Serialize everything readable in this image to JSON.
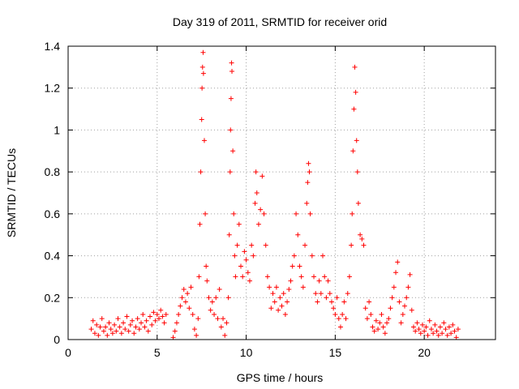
{
  "chart_data": {
    "type": "scatter",
    "title": "Day 319 of 2011, SRMTID for receiver orid",
    "xlabel": "GPS time / hours",
    "ylabel": "SRMTID / TECUs",
    "xlim": [
      0,
      24
    ],
    "ylim": [
      0,
      1.4
    ],
    "xticks": [
      0,
      5,
      10,
      15,
      20
    ],
    "xtick_labels": [
      "0",
      "5",
      "10",
      "15",
      "20"
    ],
    "yticks": [
      0,
      0.2,
      0.4,
      0.6,
      0.8,
      1.0,
      1.2,
      1.4
    ],
    "ytick_labels": [
      "0",
      "0.2",
      "0.4",
      "0.6",
      "0.8",
      "1",
      "1.2",
      "1.4"
    ],
    "grid": true,
    "marker": "+",
    "color": "#ff0000",
    "series": [
      {
        "name": "SRMTID",
        "points": [
          [
            1.3,
            0.05
          ],
          [
            1.4,
            0.09
          ],
          [
            1.5,
            0.03
          ],
          [
            1.6,
            0.07
          ],
          [
            1.7,
            0.02
          ],
          [
            1.8,
            0.06
          ],
          [
            1.9,
            0.1
          ],
          [
            2.0,
            0.04
          ],
          [
            2.1,
            0.06
          ],
          [
            2.2,
            0.02
          ],
          [
            2.3,
            0.08
          ],
          [
            2.4,
            0.05
          ],
          [
            2.5,
            0.03
          ],
          [
            2.6,
            0.07
          ],
          [
            2.7,
            0.04
          ],
          [
            2.8,
            0.1
          ],
          [
            2.9,
            0.06
          ],
          [
            3.0,
            0.03
          ],
          [
            3.1,
            0.08
          ],
          [
            3.2,
            0.05
          ],
          [
            3.3,
            0.11
          ],
          [
            3.4,
            0.04
          ],
          [
            3.5,
            0.07
          ],
          [
            3.6,
            0.09
          ],
          [
            3.7,
            0.03
          ],
          [
            3.8,
            0.06
          ],
          [
            3.9,
            0.1
          ],
          [
            4.0,
            0.05
          ],
          [
            4.1,
            0.08
          ],
          [
            4.2,
            0.12
          ],
          [
            4.3,
            0.06
          ],
          [
            4.4,
            0.09
          ],
          [
            4.5,
            0.04
          ],
          [
            4.6,
            0.11
          ],
          [
            4.7,
            0.07
          ],
          [
            4.8,
            0.13
          ],
          [
            4.9,
            0.09
          ],
          [
            5.0,
            0.12
          ],
          [
            5.1,
            0.1
          ],
          [
            5.2,
            0.14
          ],
          [
            5.3,
            0.11
          ],
          [
            5.4,
            0.08
          ],
          [
            5.5,
            0.12
          ],
          [
            5.9,
            0.01
          ],
          [
            6.0,
            0.04
          ],
          [
            6.1,
            0.08
          ],
          [
            6.2,
            0.12
          ],
          [
            6.3,
            0.16
          ],
          [
            6.4,
            0.2
          ],
          [
            6.5,
            0.24
          ],
          [
            6.6,
            0.18
          ],
          [
            6.7,
            0.22
          ],
          [
            6.8,
            0.15
          ],
          [
            6.9,
            0.25
          ],
          [
            7.0,
            0.12
          ],
          [
            7.1,
            0.05
          ],
          [
            7.2,
            0.02
          ],
          [
            7.3,
            0.1
          ],
          [
            7.35,
            0.3
          ],
          [
            7.4,
            0.55
          ],
          [
            7.45,
            0.8
          ],
          [
            7.5,
            1.05
          ],
          [
            7.52,
            1.2
          ],
          [
            7.55,
            1.3
          ],
          [
            7.58,
            1.37
          ],
          [
            7.6,
            1.27
          ],
          [
            7.65,
            0.95
          ],
          [
            7.7,
            0.6
          ],
          [
            7.75,
            0.35
          ],
          [
            7.8,
            0.28
          ],
          [
            7.9,
            0.2
          ],
          [
            8.0,
            0.14
          ],
          [
            8.1,
            0.18
          ],
          [
            8.2,
            0.12
          ],
          [
            8.3,
            0.2
          ],
          [
            8.4,
            0.1
          ],
          [
            8.5,
            0.24
          ],
          [
            8.6,
            0.06
          ],
          [
            8.7,
            0.1
          ],
          [
            8.8,
            0.02
          ],
          [
            8.9,
            0.08
          ],
          [
            9.0,
            0.2
          ],
          [
            9.05,
            0.5
          ],
          [
            9.1,
            0.8
          ],
          [
            9.12,
            1.0
          ],
          [
            9.15,
            1.15
          ],
          [
            9.18,
            1.32
          ],
          [
            9.2,
            1.28
          ],
          [
            9.25,
            0.9
          ],
          [
            9.3,
            0.6
          ],
          [
            9.35,
            0.4
          ],
          [
            9.4,
            0.3
          ],
          [
            9.5,
            0.45
          ],
          [
            9.6,
            0.55
          ],
          [
            9.7,
            0.35
          ],
          [
            9.8,
            0.3
          ],
          [
            9.9,
            0.42
          ],
          [
            10.0,
            0.38
          ],
          [
            10.1,
            0.32
          ],
          [
            10.2,
            0.28
          ],
          [
            10.3,
            0.45
          ],
          [
            10.4,
            0.4
          ],
          [
            10.5,
            0.65
          ],
          [
            10.55,
            0.8
          ],
          [
            10.6,
            0.7
          ],
          [
            10.7,
            0.55
          ],
          [
            10.8,
            0.62
          ],
          [
            10.9,
            0.78
          ],
          [
            11.0,
            0.6
          ],
          [
            11.1,
            0.45
          ],
          [
            11.2,
            0.3
          ],
          [
            11.3,
            0.25
          ],
          [
            11.4,
            0.15
          ],
          [
            11.5,
            0.22
          ],
          [
            11.6,
            0.18
          ],
          [
            11.7,
            0.25
          ],
          [
            11.8,
            0.14
          ],
          [
            11.9,
            0.2
          ],
          [
            12.0,
            0.16
          ],
          [
            12.1,
            0.22
          ],
          [
            12.2,
            0.12
          ],
          [
            12.3,
            0.18
          ],
          [
            12.4,
            0.24
          ],
          [
            12.5,
            0.28
          ],
          [
            12.6,
            0.35
          ],
          [
            12.7,
            0.4
          ],
          [
            12.8,
            0.6
          ],
          [
            12.9,
            0.5
          ],
          [
            13.0,
            0.35
          ],
          [
            13.1,
            0.3
          ],
          [
            13.2,
            0.25
          ],
          [
            13.3,
            0.45
          ],
          [
            13.4,
            0.65
          ],
          [
            13.45,
            0.75
          ],
          [
            13.5,
            0.84
          ],
          [
            13.55,
            0.8
          ],
          [
            13.6,
            0.6
          ],
          [
            13.7,
            0.4
          ],
          [
            13.8,
            0.3
          ],
          [
            13.9,
            0.22
          ],
          [
            14.0,
            0.18
          ],
          [
            14.1,
            0.28
          ],
          [
            14.2,
            0.22
          ],
          [
            14.3,
            0.4
          ],
          [
            14.4,
            0.3
          ],
          [
            14.5,
            0.2
          ],
          [
            14.6,
            0.28
          ],
          [
            14.7,
            0.22
          ],
          [
            14.8,
            0.18
          ],
          [
            14.9,
            0.15
          ],
          [
            15.0,
            0.12
          ],
          [
            15.1,
            0.2
          ],
          [
            15.2,
            0.1
          ],
          [
            15.3,
            0.06
          ],
          [
            15.4,
            0.12
          ],
          [
            15.5,
            0.18
          ],
          [
            15.6,
            0.1
          ],
          [
            15.7,
            0.22
          ],
          [
            15.8,
            0.3
          ],
          [
            15.9,
            0.45
          ],
          [
            15.95,
            0.6
          ],
          [
            16.0,
            0.9
          ],
          [
            16.05,
            1.1
          ],
          [
            16.1,
            1.3
          ],
          [
            16.15,
            1.18
          ],
          [
            16.2,
            0.95
          ],
          [
            16.25,
            0.8
          ],
          [
            16.3,
            0.65
          ],
          [
            16.4,
            0.5
          ],
          [
            16.5,
            0.48
          ],
          [
            16.6,
            0.45
          ],
          [
            16.7,
            0.15
          ],
          [
            16.8,
            0.1
          ],
          [
            16.9,
            0.18
          ],
          [
            17.0,
            0.12
          ],
          [
            17.1,
            0.06
          ],
          [
            17.2,
            0.04
          ],
          [
            17.3,
            0.09
          ],
          [
            17.4,
            0.05
          ],
          [
            17.5,
            0.08
          ],
          [
            17.6,
            0.12
          ],
          [
            17.7,
            0.06
          ],
          [
            17.8,
            0.03
          ],
          [
            17.9,
            0.08
          ],
          [
            18.0,
            0.1
          ],
          [
            18.1,
            0.15
          ],
          [
            18.2,
            0.2
          ],
          [
            18.3,
            0.25
          ],
          [
            18.4,
            0.32
          ],
          [
            18.5,
            0.37
          ],
          [
            18.6,
            0.18
          ],
          [
            18.7,
            0.08
          ],
          [
            18.8,
            0.12
          ],
          [
            18.9,
            0.16
          ],
          [
            19.0,
            0.2
          ],
          [
            19.1,
            0.25
          ],
          [
            19.2,
            0.31
          ],
          [
            19.3,
            0.14
          ],
          [
            19.4,
            0.06
          ],
          [
            19.5,
            0.04
          ],
          [
            19.6,
            0.08
          ],
          [
            19.7,
            0.05
          ],
          [
            19.8,
            0.03
          ],
          [
            19.9,
            0.07
          ],
          [
            20.0,
            0.04
          ],
          [
            20.1,
            0.06
          ],
          [
            20.2,
            0.02
          ],
          [
            20.3,
            0.09
          ],
          [
            20.4,
            0.05
          ],
          [
            20.5,
            0.03
          ],
          [
            20.6,
            0.07
          ],
          [
            20.7,
            0.04
          ],
          [
            20.8,
            0.02
          ],
          [
            20.9,
            0.06
          ],
          [
            21.0,
            0.03
          ],
          [
            21.1,
            0.08
          ],
          [
            21.2,
            0.05
          ],
          [
            21.3,
            0.02
          ],
          [
            21.4,
            0.06
          ],
          [
            21.5,
            0.03
          ],
          [
            21.6,
            0.07
          ],
          [
            21.7,
            0.04
          ],
          [
            21.8,
            0.01
          ],
          [
            21.9,
            0.05
          ]
        ]
      }
    ]
  }
}
